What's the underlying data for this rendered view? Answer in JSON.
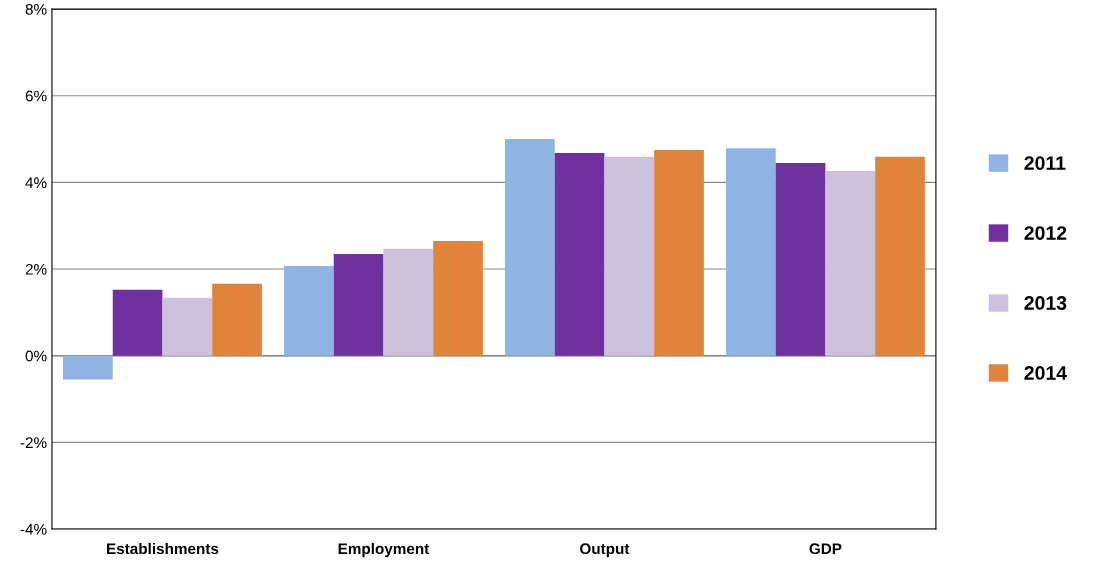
{
  "chart_data": {
    "type": "bar",
    "categories": [
      "Establishments",
      "Employment",
      "Output",
      "GDP"
    ],
    "series": [
      {
        "name": "2011",
        "color": "#8eb4e3",
        "values": [
          -0.55,
          2.07,
          5.0,
          4.79
        ]
      },
      {
        "name": "2012",
        "color": "#7030a0",
        "values": [
          1.52,
          2.35,
          4.68,
          4.45
        ]
      },
      {
        "name": "2013",
        "color": "#ccc1da",
        "values": [
          1.34,
          2.47,
          4.59,
          4.26
        ]
      },
      {
        "name": "2014",
        "color": "#e0843c",
        "values": [
          1.66,
          2.65,
          4.75,
          4.59
        ]
      }
    ],
    "ylim": [
      -4,
      8
    ],
    "yticks": [
      {
        "value": -4,
        "label": "-4%"
      },
      {
        "value": -2,
        "label": "-2%"
      },
      {
        "value": 0,
        "label": "0%"
      },
      {
        "value": 2,
        "label": "2%"
      },
      {
        "value": 4,
        "label": "4%"
      },
      {
        "value": 6,
        "label": "6%"
      },
      {
        "value": 8,
        "label": "8%"
      }
    ],
    "grid": "y",
    "legend": "right"
  }
}
